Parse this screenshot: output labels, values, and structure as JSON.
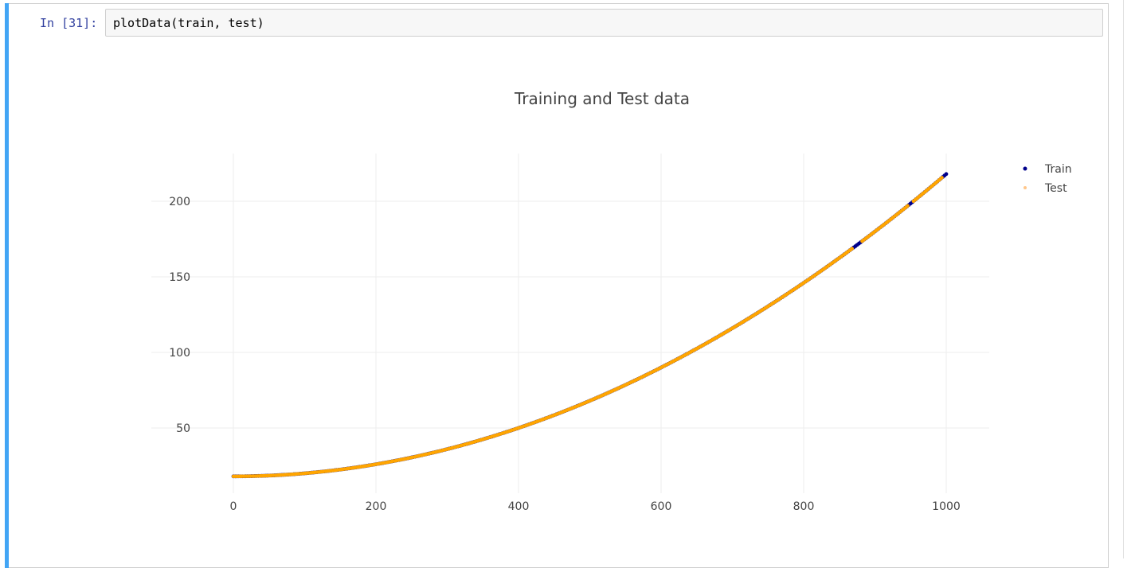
{
  "cell": {
    "prompt": "In [31]:",
    "code": "plotData(train, test)"
  },
  "colors": {
    "selection_bar": "#42a5f5",
    "prompt": "#303f9f",
    "train_marker": "#00008b",
    "test_marker": "#ffa500",
    "test_legend_marker": "#ffc68a"
  },
  "chart_data": {
    "type": "scatter",
    "title": "Training and Test data",
    "xlabel": "",
    "ylabel": "",
    "xlim": [
      0,
      1060
    ],
    "ylim": [
      8,
      230
    ],
    "x_ticks": [
      0,
      200,
      400,
      600,
      800,
      1000
    ],
    "y_ticks": [
      50,
      100,
      150,
      200
    ],
    "grid": true,
    "legend_placement": "top-right",
    "series": [
      {
        "name": "Train",
        "description": "y ≈ 0.0002·x² + 18",
        "points": [
          [
            0,
            18
          ],
          [
            20,
            18.1
          ],
          [
            40,
            18.3
          ],
          [
            60,
            18.7
          ],
          [
            100,
            20
          ],
          [
            150,
            22.5
          ],
          [
            200,
            26
          ],
          [
            250,
            30.5
          ],
          [
            300,
            36
          ],
          [
            350,
            42.5
          ],
          [
            400,
            50
          ],
          [
            450,
            58.5
          ],
          [
            500,
            68
          ],
          [
            550,
            78.5
          ],
          [
            600,
            90
          ],
          [
            650,
            102.5
          ],
          [
            700,
            116
          ],
          [
            750,
            130.5
          ],
          [
            800,
            146
          ],
          [
            850,
            162.5
          ],
          [
            875,
            171
          ],
          [
            900,
            180
          ],
          [
            950,
            198.5
          ],
          [
            1000,
            218
          ]
        ]
      },
      {
        "name": "Test",
        "description": "y ≈ 0.0002·x² + 18",
        "points": [
          [
            10,
            18
          ],
          [
            50,
            18.5
          ],
          [
            120,
            20.9
          ],
          [
            180,
            24.5
          ],
          [
            230,
            28.6
          ],
          [
            280,
            33.7
          ],
          [
            330,
            39.8
          ],
          [
            380,
            46.9
          ],
          [
            430,
            55
          ],
          [
            480,
            64.1
          ],
          [
            530,
            74.2
          ],
          [
            580,
            85.3
          ],
          [
            630,
            97.4
          ],
          [
            680,
            110.5
          ],
          [
            730,
            124.6
          ],
          [
            780,
            139.7
          ],
          [
            830,
            155.8
          ],
          [
            880,
            172.9
          ],
          [
            930,
            191
          ],
          [
            980,
            210.1
          ]
        ]
      }
    ]
  }
}
